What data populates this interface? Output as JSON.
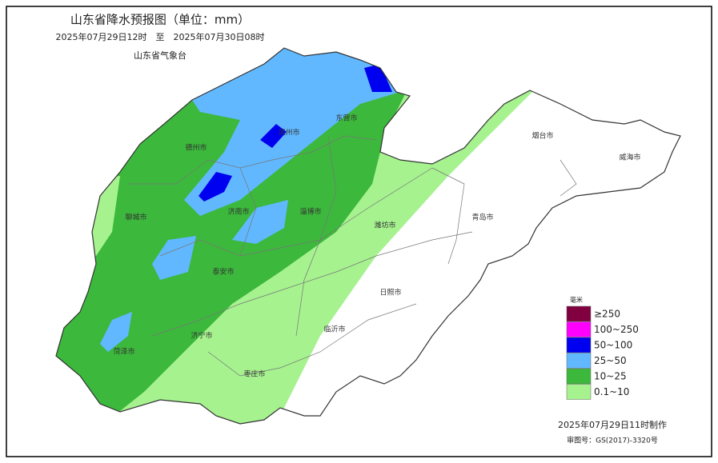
{
  "header": {
    "title": "山东省降水预报图（单位：mm）",
    "period": "2025年07月29日12时　至　2025年07月30日08时",
    "issuer": "山东省气象台"
  },
  "cities": [
    "滨州市",
    "东营市",
    "德州市",
    "聊城市",
    "济南市",
    "淄博市",
    "潍坊市",
    "烟台市",
    "威海市",
    "青岛市",
    "泰安市",
    "济宁市",
    "菏泽市",
    "临沂市",
    "日照市",
    "枣庄市"
  ],
  "legend": {
    "title": "毫米",
    "items": [
      {
        "label": "≥250",
        "color": "#800040"
      },
      {
        "label": "100~250",
        "color": "#ff00ff"
      },
      {
        "label": "50~100",
        "color": "#0000f0"
      },
      {
        "label": "25~50",
        "color": "#61b8ff"
      },
      {
        "label": "10~25",
        "color": "#3cb83c"
      },
      {
        "label": "0.1~10",
        "color": "#a6f28f"
      }
    ]
  },
  "footer": {
    "made": "2025年07月29日11时制作",
    "approval": "审图号：GS(2017)-3320号"
  }
}
